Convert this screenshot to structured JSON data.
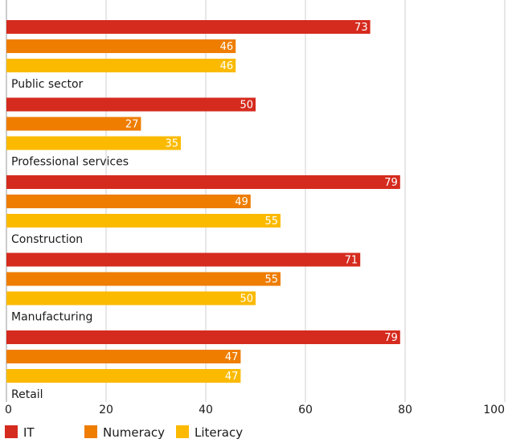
{
  "chart_data": {
    "type": "bar",
    "orientation": "horizontal",
    "categories": [
      "Public sector",
      "Professional services",
      "Construction",
      "Manufacturing",
      "Retail"
    ],
    "series": [
      {
        "name": "IT",
        "color": "#d52b1e",
        "values": [
          73,
          50,
          79,
          71,
          79
        ]
      },
      {
        "name": "Numeracy",
        "color": "#ee7d00",
        "values": [
          46,
          27,
          49,
          55,
          47
        ]
      },
      {
        "name": "Literacy",
        "color": "#fbba00",
        "values": [
          46,
          35,
          55,
          50,
          47
        ]
      }
    ],
    "xlim": [
      0,
      100
    ],
    "xticks": [
      0,
      20,
      40,
      60,
      80,
      100
    ],
    "grid": true,
    "legend_placement": "bottom-left",
    "title": "",
    "xlabel": "",
    "ylabel": ""
  }
}
